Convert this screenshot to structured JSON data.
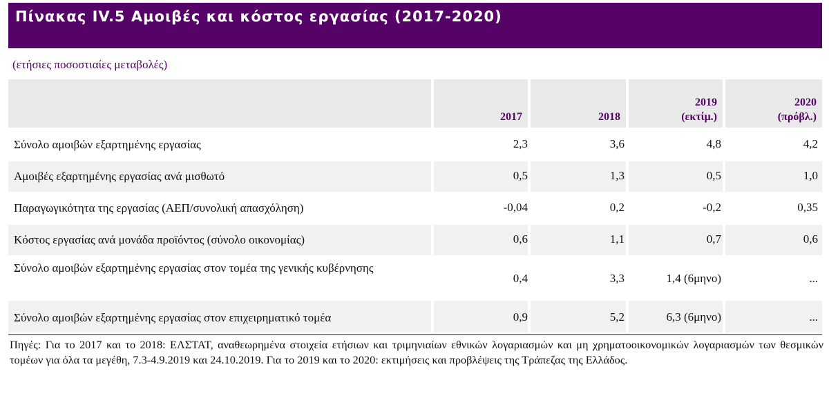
{
  "title": "Πίνακας IV.5 Αμοιβές και κόστος εργασίας (2017-2020)",
  "subtitle": "(ετήσιες ποσοστιαίες μεταβολές)",
  "columns": [
    {
      "year": "2017",
      "note": ""
    },
    {
      "year": "2018",
      "note": ""
    },
    {
      "year": "2019",
      "note": "(εκτίμ.)"
    },
    {
      "year": "2020",
      "note": "(πρόβλ.)"
    }
  ],
  "rows": [
    {
      "label": "Σύνολο αμοιβών εξαρτημένης εργασίας",
      "values": [
        "2,3",
        "3,6",
        "4,8",
        "4,2"
      ]
    },
    {
      "label": "Αμοιβές εξαρτημένης εργασίας ανά μισθωτό",
      "values": [
        "0,5",
        "1,3",
        "0,5",
        "1,0"
      ]
    },
    {
      "label": "Παραγωγικότητα της εργασίας (ΑΕΠ/συνολική απασχόληση)",
      "values": [
        "-0,04",
        "0,2",
        "-0,2",
        "0,35"
      ]
    },
    {
      "label": "Κόστος εργασίας ανά μονάδα προϊόντος (σύνολο οικονομίας)",
      "values": [
        "0,6",
        "1,1",
        "0,7",
        "0,6"
      ]
    },
    {
      "label": "Σύνολο αμοιβών εξαρτημένης εργασίας στον τομέα της γενικής κυβέρνησης",
      "values": [
        "0,4",
        "3,3",
        "1,4 (6μηνο)",
        "..."
      ]
    },
    {
      "label": "Σύνολο αμοιβών εξαρτημένης εργασίας στον επιχειρηματικό τομέα",
      "values": [
        "0,9",
        "5,2",
        "6,3 (6μηνο)",
        "..."
      ]
    }
  ],
  "source": "Πηγές: Για το 2017 και το 2018: ΕΛΣΤΑΤ, αναθεωρημένα στοιχεία ετήσιων και τριμηνιαίων εθνικών λογαριασμών και μη χρηματοοικονομικών λογαριασμών  των θεσμικών τομέων για όλα τα μεγέθη, 7.3-4.9.2019 και 24.10.2019. Για το 2019 και το 2020: εκτιμήσεις και προβλέψεις της Τράπεζας της Ελλάδος.",
  "colors": {
    "title_bg": "#560368",
    "accent_text": "#560368",
    "header_bg": "#e9e9e9",
    "row_shade": "#f1f1f1"
  }
}
